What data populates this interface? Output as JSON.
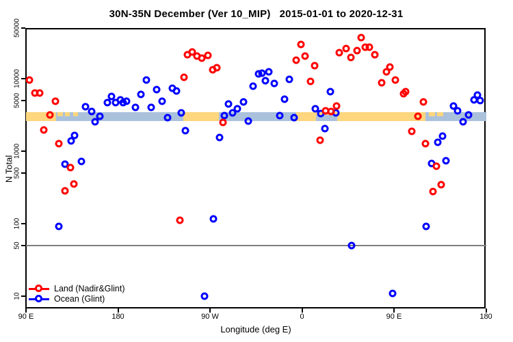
{
  "title": "30N-35N December (Ver 10_MIP)   2015-01-01 to 2020-12-31",
  "chart_data": {
    "type": "scatter",
    "title": "30N-35N December (Ver 10_MIP)   2015-01-01 to 2020-12-31",
    "xlabel": "Longitude (deg E)",
    "ylabel": "N Total",
    "x_axis": {
      "note": "longitude axis wraps: spans 450 deg starting at 90E",
      "range_deg": [
        90,
        540
      ],
      "ticks": [
        {
          "deg": 90,
          "label": "90 E"
        },
        {
          "deg": 180,
          "label": "180"
        },
        {
          "deg": 270,
          "label": "90 W"
        },
        {
          "deg": 360,
          "label": "0"
        },
        {
          "deg": 450,
          "label": "90 E"
        },
        {
          "deg": 540,
          "label": "180"
        }
      ]
    },
    "y_axis": {
      "scale": "log10",
      "range": [
        8,
        60000
      ],
      "ticks": [
        50000,
        10000,
        5000,
        1000,
        500,
        100,
        50,
        10
      ]
    },
    "reference_line_y": 50,
    "map_strip": {
      "description": "world coastline band for 30N-35N latitude drawn across plot at N~2600-3450",
      "value_range": [
        2600,
        3450
      ],
      "ocean_color": "#aac1dc",
      "land_color": "#fdd67e",
      "land_segments_deg": [
        [
          90,
          119.5
        ],
        [
          244,
          278.8
        ],
        [
          354.5,
          481
        ]
      ],
      "island_specks_deg": [
        [
          121,
          126
        ],
        [
          128,
          133
        ],
        [
          136,
          141
        ],
        [
          484,
          490
        ],
        [
          492,
          498
        ]
      ],
      "ocean_inset_deg": [
        [
          374,
          394.7
        ]
      ]
    },
    "legend_position": "bottom-left",
    "series": [
      {
        "name": "Land (Nadir&Glint)",
        "color": "#ff0000",
        "points": [
          [
            93.3,
            9600
          ],
          [
            98.5,
            6270
          ],
          [
            103.2,
            6270
          ],
          [
            107.6,
            1940
          ],
          [
            113.4,
            3130
          ],
          [
            118.8,
            4890
          ],
          [
            121.9,
            1270
          ],
          [
            128.4,
            281
          ],
          [
            133.3,
            600
          ],
          [
            137.1,
            354
          ],
          [
            240.5,
            111
          ],
          [
            244.7,
            10400
          ],
          [
            248.0,
            21400
          ],
          [
            252.7,
            23100
          ],
          [
            257.6,
            20650
          ],
          [
            262.3,
            19350
          ],
          [
            267.7,
            20900
          ],
          [
            272.8,
            13400
          ],
          [
            277.0,
            14200
          ],
          [
            282.4,
            2510
          ],
          [
            354.0,
            17800
          ],
          [
            358.7,
            29800
          ],
          [
            363.2,
            20500
          ],
          [
            368.6,
            9120
          ],
          [
            372.4,
            14950
          ],
          [
            377.5,
            1420
          ],
          [
            383.3,
            3640
          ],
          [
            388.2,
            3510
          ],
          [
            393.5,
            4230
          ],
          [
            396.7,
            23000
          ],
          [
            402.9,
            26200
          ],
          [
            408.1,
            19800
          ],
          [
            413.9,
            24200
          ],
          [
            418.1,
            36900
          ],
          [
            421.9,
            27300
          ],
          [
            425.7,
            27300
          ],
          [
            431.5,
            21400
          ],
          [
            438.0,
            8730
          ],
          [
            442.5,
            12300
          ],
          [
            446.3,
            14500
          ],
          [
            451.6,
            9570
          ],
          [
            459.2,
            6230
          ],
          [
            461.5,
            6550
          ],
          [
            467.5,
            1890
          ],
          [
            473.5,
            3040
          ],
          [
            478.6,
            4740
          ],
          [
            480.9,
            1270
          ],
          [
            488.0,
            277
          ],
          [
            491.6,
            619
          ],
          [
            496.3,
            348
          ]
        ]
      },
      {
        "name": "Ocean (Glint)",
        "color": "#0000ff",
        "points": [
          [
            122.1,
            92
          ],
          [
            128.0,
            659
          ],
          [
            134.2,
            1380
          ],
          [
            137.5,
            1650
          ],
          [
            144.0,
            724
          ],
          [
            148.3,
            4070
          ],
          [
            154.5,
            3510
          ],
          [
            157.8,
            2540
          ],
          [
            162.1,
            3010
          ],
          [
            169.5,
            4680
          ],
          [
            173.5,
            5710
          ],
          [
            177.7,
            4680
          ],
          [
            182.2,
            5130
          ],
          [
            185.1,
            4630
          ],
          [
            188.6,
            4920
          ],
          [
            197.0,
            4000
          ],
          [
            202.5,
            6010
          ],
          [
            207.6,
            9520
          ],
          [
            212.4,
            3990
          ],
          [
            218.1,
            7030
          ],
          [
            223.1,
            4880
          ],
          [
            228.6,
            2900
          ],
          [
            233.1,
            7400
          ],
          [
            237.5,
            6740
          ],
          [
            241.8,
            3400
          ],
          [
            245.8,
            1910
          ],
          [
            264.6,
            10
          ],
          [
            273.5,
            116
          ],
          [
            279.7,
            1550
          ],
          [
            284.2,
            3100
          ],
          [
            288.4,
            4450
          ],
          [
            292.4,
            3410
          ],
          [
            296.9,
            3860
          ],
          [
            302.5,
            4740
          ],
          [
            307.6,
            2580
          ],
          [
            312.3,
            7830
          ],
          [
            317.5,
            11700
          ],
          [
            320.8,
            11970
          ],
          [
            324.2,
            9440
          ],
          [
            327.5,
            12330
          ],
          [
            333.1,
            8650
          ],
          [
            338.4,
            3080
          ],
          [
            343.1,
            5160
          ],
          [
            347.6,
            9790
          ],
          [
            352.0,
            2870
          ],
          [
            373.2,
            3880
          ],
          [
            378.4,
            3330
          ],
          [
            382.6,
            2050
          ],
          [
            387.8,
            6610
          ],
          [
            392.9,
            3390
          ],
          [
            408.5,
            50
          ],
          [
            448.5,
            11
          ],
          [
            481.5,
            92
          ],
          [
            487.1,
            679
          ],
          [
            492.7,
            1330
          ],
          [
            497.6,
            1610
          ],
          [
            501.0,
            740
          ],
          [
            508.3,
            4170
          ],
          [
            512.5,
            3580
          ],
          [
            517.9,
            2560
          ],
          [
            523.0,
            3150
          ],
          [
            528.1,
            5140
          ],
          [
            531.5,
            5950
          ],
          [
            534.6,
            5000
          ]
        ]
      }
    ]
  }
}
